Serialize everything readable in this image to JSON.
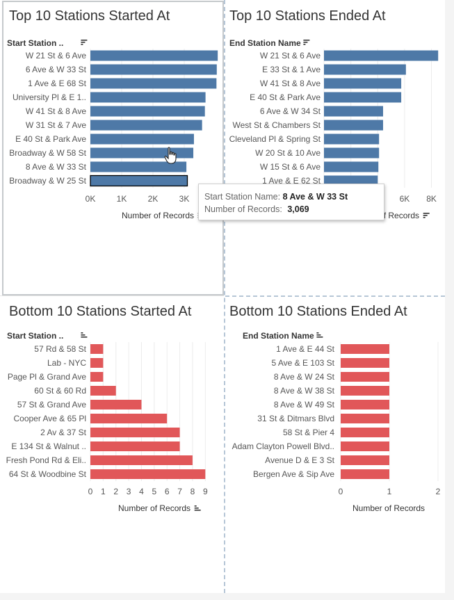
{
  "colors": {
    "top_bar": "#4e79a7",
    "bottom_bar": "#e15759",
    "grid": "#ececec",
    "text": "#555555"
  },
  "chart_data": [
    {
      "id": "top_started",
      "type": "bar",
      "orientation": "horizontal",
      "title": "Top 10 Stations Started At",
      "ylabel": "Start Station ..",
      "xlabel": "Number of Records",
      "categories": [
        "W 21 St & 6 Ave",
        "6 Ave & W 33 St",
        "1 Ave & E 68 St",
        "University Pl & E 1..",
        "W 41 St & 8 Ave",
        "W 31 St & 7 Ave",
        "E 40 St & Park Ave",
        "Broadway & W 58 St",
        "8 Ave & W 33 St",
        "Broadway & W 25 St"
      ],
      "values": [
        4070,
        4040,
        4030,
        3680,
        3660,
        3570,
        3310,
        3290,
        3069,
        3100
      ],
      "xlim": [
        0,
        4000
      ],
      "ticks": [
        0,
        1000,
        2000,
        3000
      ],
      "tick_labels": [
        "0K",
        "1K",
        "2K",
        "3K"
      ],
      "highlighted": "Broadway & W 25 St",
      "sort_icon": "sort-desc-icon",
      "color": "#4e79a7"
    },
    {
      "id": "top_ended",
      "type": "bar",
      "orientation": "horizontal",
      "title": "Top 10 Stations Ended At",
      "ylabel": "End Station Name",
      "xlabel": "Number of Records",
      "categories": [
        "W 21 St & 6 Ave",
        "E 33 St & 1 Ave",
        "W 41 St & 8 Ave",
        "E 40 St & Park Ave",
        "6 Ave & W 34 St",
        "West St & Chambers St",
        "Cleveland Pl & Spring St",
        "W 20 St & 10 Ave",
        "W 15 St & 6 Ave",
        "1 Ave & E 62 St"
      ],
      "values": [
        8500,
        6100,
        5750,
        5750,
        4400,
        4400,
        4100,
        4100,
        4050,
        4000
      ],
      "xlim": [
        0,
        8800
      ],
      "ticks": [
        0,
        2000,
        4000,
        6000,
        8000
      ],
      "tick_labels": [
        "0K",
        "2K",
        "4K",
        "6K",
        "8K"
      ],
      "sort_icon": "sort-desc-icon",
      "color": "#4e79a7"
    },
    {
      "id": "bottom_started",
      "type": "bar",
      "orientation": "horizontal",
      "title": "Bottom 10 Stations Started At",
      "ylabel": "Start Station ..",
      "xlabel": "Number of Records",
      "categories": [
        "57 Rd & 58 St",
        "Lab - NYC",
        "Page Pl & Grand Ave",
        "60 St & 60 Rd",
        "57 St & Grand Ave",
        "Cooper Ave & 65 Pl",
        "2 Av & 37 St",
        "E 134 St & Walnut ..",
        "Fresh Pond Rd & Eli..",
        "64 St & Woodbine St"
      ],
      "values": [
        1,
        1,
        1,
        2,
        4,
        6,
        7,
        7,
        8,
        9
      ],
      "xlim": [
        0,
        9.8
      ],
      "ticks": [
        0,
        1,
        2,
        3,
        4,
        5,
        6,
        7,
        8,
        9
      ],
      "tick_labels": [
        "0",
        "1",
        "2",
        "3",
        "4",
        "5",
        "6",
        "7",
        "8",
        "9"
      ],
      "sort_icon": "sort-asc-icon",
      "color": "#e15759"
    },
    {
      "id": "bottom_ended",
      "type": "bar",
      "orientation": "horizontal",
      "title": "Bottom 10 Stations Ended At",
      "ylabel": "End Station Name",
      "xlabel": "Number of Records",
      "categories": [
        "1 Ave & E 44 St",
        "5 Ave & E 103 St",
        "8 Ave & W 24 St",
        "8 Ave & W 38 St",
        "8 Ave & W 49 St",
        "31 St & Ditmars Blvd",
        "58 St & Pier 4",
        "Adam Clayton Powell Blvd..",
        "Avenue D & E 3 St",
        "Bergen Ave & Sip Ave"
      ],
      "values": [
        1,
        1,
        1,
        1,
        1,
        1,
        1,
        1,
        1,
        1
      ],
      "xlim": [
        0,
        2
      ],
      "ticks": [
        0,
        1,
        2
      ],
      "tick_labels": [
        "0",
        "1",
        "2"
      ],
      "sort_icon": "sort-asc-icon",
      "color": "#e15759"
    }
  ],
  "tooltip": {
    "label1": "Start Station Name:",
    "value1": "8 Ave & W 33 St",
    "label2": "Number of Records:",
    "value2": "3,069"
  }
}
